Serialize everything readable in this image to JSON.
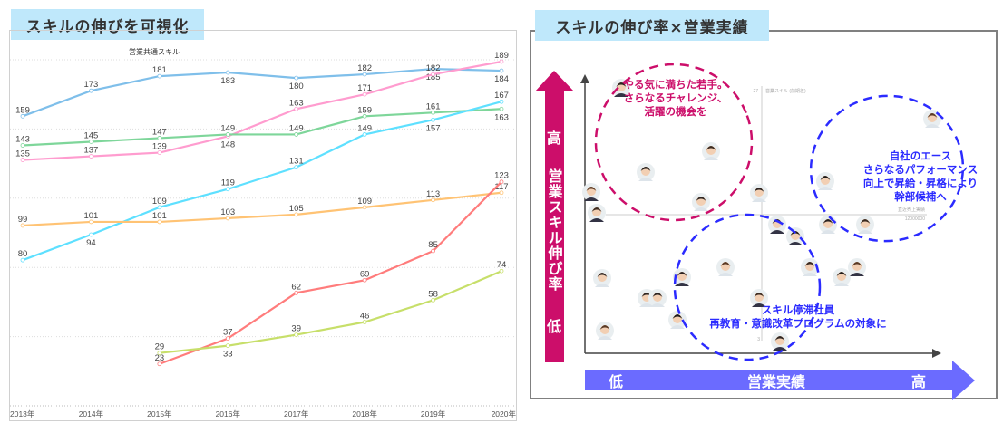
{
  "left_panel": {
    "title": "スキルの伸びを可視化"
  },
  "right_panel": {
    "title": "スキルの伸び率×営業実績",
    "y_arrow": {
      "high": "高",
      "label": "営業スキル伸び率",
      "low": "低",
      "color": "#cc0e6a"
    },
    "x_arrow": {
      "low": "低",
      "label": "営業実績",
      "high": "高",
      "color": "#6b6bff"
    },
    "inner_axis_labels": {
      "y_top_value": "27",
      "y_label": "営業スキル (前期差)",
      "x_label": "直近売上実績",
      "x_value": "12000000",
      "y_bottom_value": "3"
    },
    "annotations": [
      {
        "lines": [
          "やる気に満ちた若手。",
          "さらなるチャレンジ、",
          "活躍の機会を"
        ],
        "color": "#cc0e6a"
      },
      {
        "lines": [
          "自社のエース",
          "さらなるパフォーマンス",
          "向上で昇給・昇格により",
          "幹部候補へ"
        ],
        "color": "#2b2bff"
      },
      {
        "lines": [
          "スキル停滞社員",
          "再教育・意識改革プログラムの対象に"
        ],
        "color": "#2b2bff"
      }
    ]
  },
  "chart_data": {
    "type": "line",
    "title": "営業共通スキル",
    "categories": [
      "2013年",
      "2014年",
      "2015年",
      "2016年",
      "2017年",
      "2018年",
      "2019年",
      "2020年"
    ],
    "ylim": [
      0,
      190
    ],
    "grid": true,
    "data_labels": true,
    "series": [
      {
        "color": "#7fbfea",
        "values": [
          159,
          173,
          181,
          183,
          180,
          182,
          185,
          184
        ]
      },
      {
        "color": "#ff9ccf",
        "values": [
          135,
          137,
          139,
          148,
          163,
          171,
          182,
          189
        ]
      },
      {
        "color": "#7ed69a",
        "values": [
          143,
          145,
          147,
          149,
          149,
          159,
          161,
          163
        ]
      },
      {
        "color": "#5ee0ff",
        "values": [
          80,
          94,
          109,
          119,
          131,
          149,
          157,
          167
        ]
      },
      {
        "color": "#ffc374",
        "values": [
          99,
          101,
          101,
          103,
          105,
          109,
          113,
          117
        ]
      },
      {
        "color": "#ff7c7c",
        "values": [
          null,
          null,
          23,
          37,
          62,
          69,
          85,
          123
        ]
      },
      {
        "color": "#c7df6a",
        "values": [
          null,
          null,
          29,
          33,
          39,
          46,
          58,
          74
        ]
      }
    ]
  }
}
